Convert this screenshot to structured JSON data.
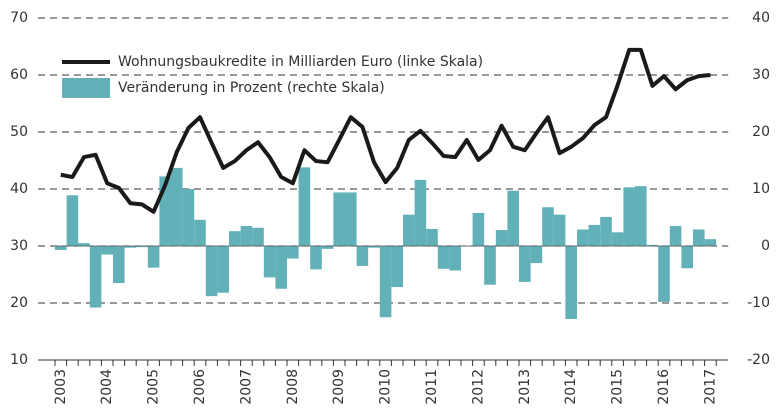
{
  "chart_data": {
    "type": "bar-line",
    "categories": [
      "2003",
      null,
      null,
      null,
      "2004",
      null,
      null,
      null,
      "2005",
      null,
      null,
      null,
      "2006",
      null,
      null,
      null,
      "2007",
      null,
      null,
      null,
      "2008",
      null,
      null,
      null,
      "2009",
      null,
      null,
      null,
      "2010",
      null,
      null,
      null,
      "2011",
      null,
      null,
      null,
      "2012",
      null,
      null,
      null,
      "2013",
      null,
      null,
      null,
      "2014",
      null,
      null,
      null,
      "2015",
      null,
      null,
      null,
      "2016",
      null,
      null,
      null,
      "2017"
    ],
    "series": [
      {
        "name": "Wohnungsbaukredite in Milliarden Euro (linke Skala)",
        "type": "line",
        "color": "#1a1a1a",
        "axis": "y",
        "values": [
          42.5,
          42.1,
          45.6,
          46,
          41,
          40.2,
          37.5,
          37.3,
          36,
          40.7,
          46.5,
          50.7,
          52.6,
          48.1,
          43.7,
          44.9,
          46.8,
          48.2,
          45.6,
          42.1,
          41,
          46.8,
          44.9,
          44.7,
          48.6,
          52.6,
          50.9,
          44.7,
          41.2,
          43.7,
          48.6,
          50.2,
          48.1,
          45.8,
          45.6,
          48.6,
          45.1,
          46.8,
          51.1,
          47.4,
          46.8,
          49.8,
          52.6,
          46.3,
          47.4,
          48.9,
          51.2,
          52.6,
          58.2,
          64.4,
          64.4,
          58.1,
          59.8,
          57.5,
          59.1,
          59.8,
          60
        ]
      },
      {
        "name": "Veränderung in Prozent (rechte Skala)",
        "type": "bar",
        "color": "#62b1b9",
        "axis": "y2",
        "values": [
          -0.7,
          8.9,
          0.5,
          -10.8,
          -1.5,
          -6.5,
          -0.3,
          -0.2,
          -3.8,
          12.2,
          13.7,
          10,
          4.6,
          -8.8,
          -8.2,
          2.6,
          3.5,
          3.2,
          -5.5,
          -7.5,
          -2.2,
          13.8,
          -4.1,
          -0.5,
          9.4,
          9.4,
          -3.5,
          -0.3,
          -12.5,
          -7.2,
          5.5,
          11.6,
          3,
          -4,
          -4.3,
          -0.1,
          5.8,
          -6.8,
          2.8,
          9.7,
          -6.3,
          -3,
          6.8,
          5.5,
          -12.8,
          2.9,
          3.7,
          5.1,
          2.4,
          10.3,
          10.5,
          0.2,
          -9.8,
          3.5,
          -3.9,
          2.9,
          1.2
        ]
      }
    ],
    "ylim": [
      10,
      70
    ],
    "yticks": [
      10,
      20,
      30,
      40,
      50,
      60,
      70
    ],
    "y2lim": [
      -20,
      40
    ],
    "y2ticks": [
      -20,
      -10,
      0,
      10,
      20,
      30,
      40
    ],
    "grid": true,
    "legend": "upper left"
  }
}
